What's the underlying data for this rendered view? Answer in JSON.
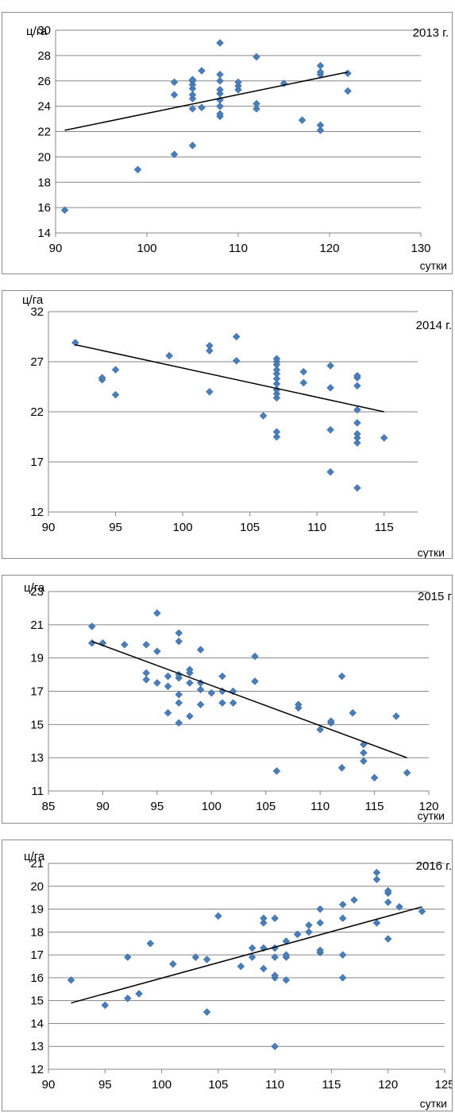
{
  "chart_data": [
    {
      "type": "scatter",
      "title": "2013 г.",
      "ylabel": "ц/га",
      "xlabel": "сутки",
      "xlim": [
        90,
        130
      ],
      "ylim": [
        14,
        30
      ],
      "x_ticks": [
        90,
        100,
        110,
        120,
        130
      ],
      "y_ticks": [
        14,
        16,
        18,
        20,
        22,
        24,
        26,
        28,
        30
      ],
      "grid": "horizontal",
      "trendline": [
        [
          91,
          22.1
        ],
        [
          122,
          26.7
        ]
      ],
      "points": [
        [
          91,
          15.8
        ],
        [
          99,
          19.0
        ],
        [
          103,
          20.2
        ],
        [
          103,
          24.9
        ],
        [
          103,
          25.9
        ],
        [
          105,
          20.9
        ],
        [
          105,
          23.8
        ],
        [
          105,
          24.6
        ],
        [
          105,
          24.9
        ],
        [
          105,
          25.4
        ],
        [
          105,
          25.7
        ],
        [
          105,
          26.0
        ],
        [
          105,
          26.1
        ],
        [
          106,
          23.9
        ],
        [
          106,
          26.8
        ],
        [
          108,
          23.2
        ],
        [
          108,
          23.4
        ],
        [
          108,
          24.0
        ],
        [
          108,
          24.5
        ],
        [
          108,
          25.0
        ],
        [
          108,
          25.3
        ],
        [
          108,
          26.0
        ],
        [
          108,
          26.5
        ],
        [
          108,
          29.0
        ],
        [
          110,
          25.3
        ],
        [
          110,
          25.6
        ],
        [
          110,
          25.9
        ],
        [
          112,
          23.8
        ],
        [
          112,
          24.2
        ],
        [
          112,
          27.9
        ],
        [
          115,
          25.8
        ],
        [
          117,
          22.9
        ],
        [
          119,
          22.1
        ],
        [
          119,
          22.5
        ],
        [
          119,
          26.5
        ],
        [
          119,
          26.7
        ],
        [
          119,
          27.2
        ],
        [
          122,
          25.2
        ],
        [
          122,
          26.6
        ]
      ]
    },
    {
      "type": "scatter",
      "title": "2014 г.",
      "ylabel": "ц/га",
      "xlabel": "сутки",
      "xlim": [
        90,
        117.5
      ],
      "ylim": [
        12,
        32
      ],
      "x_ticks": [
        90,
        95,
        100,
        105,
        110,
        115
      ],
      "y_ticks": [
        12,
        17,
        22,
        27,
        32
      ],
      "grid": "horizontal",
      "trendline": [
        [
          92,
          28.7
        ],
        [
          115,
          22.0
        ]
      ],
      "points": [
        [
          92,
          28.9
        ],
        [
          94,
          25.2
        ],
        [
          94,
          25.4
        ],
        [
          95,
          23.7
        ],
        [
          95,
          26.2
        ],
        [
          99,
          27.6
        ],
        [
          102,
          24.0
        ],
        [
          102,
          28.1
        ],
        [
          102,
          28.6
        ],
        [
          104,
          27.1
        ],
        [
          104,
          29.5
        ],
        [
          106,
          21.6
        ],
        [
          107,
          19.5
        ],
        [
          107,
          20.0
        ],
        [
          107,
          23.4
        ],
        [
          107,
          23.8
        ],
        [
          107,
          24.2
        ],
        [
          107,
          24.8
        ],
        [
          107,
          25.3
        ],
        [
          107,
          25.8
        ],
        [
          107,
          26.2
        ],
        [
          107,
          26.7
        ],
        [
          107,
          27.0
        ],
        [
          107,
          27.3
        ],
        [
          109,
          24.9
        ],
        [
          109,
          26.0
        ],
        [
          111,
          16.0
        ],
        [
          111,
          20.2
        ],
        [
          111,
          24.4
        ],
        [
          111,
          26.6
        ],
        [
          113,
          14.4
        ],
        [
          113,
          18.9
        ],
        [
          113,
          19.4
        ],
        [
          113,
          19.8
        ],
        [
          113,
          20.9
        ],
        [
          113,
          22.2
        ],
        [
          113,
          24.6
        ],
        [
          113,
          25.4
        ],
        [
          113,
          25.6
        ],
        [
          115,
          19.4
        ]
      ]
    },
    {
      "type": "scatter",
      "title": "2015 г",
      "ylabel": "ц/га",
      "xlabel": "сутки",
      "xlim": [
        85,
        120
      ],
      "ylim": [
        11,
        23
      ],
      "x_ticks": [
        85,
        90,
        95,
        100,
        105,
        110,
        115,
        120
      ],
      "y_ticks": [
        11,
        13,
        15,
        17,
        19,
        21,
        23
      ],
      "grid": "horizontal",
      "trendline": [
        [
          89,
          20.0
        ],
        [
          118,
          13.0
        ]
      ],
      "points": [
        [
          89,
          19.9
        ],
        [
          89,
          20.9
        ],
        [
          90,
          19.9
        ],
        [
          92,
          19.8
        ],
        [
          94,
          17.7
        ],
        [
          94,
          18.1
        ],
        [
          94,
          19.8
        ],
        [
          95,
          17.5
        ],
        [
          95,
          19.4
        ],
        [
          95,
          21.7
        ],
        [
          96,
          15.7
        ],
        [
          96,
          17.3
        ],
        [
          96,
          17.9
        ],
        [
          97,
          15.1
        ],
        [
          97,
          16.3
        ],
        [
          97,
          16.8
        ],
        [
          97,
          17.8
        ],
        [
          97,
          18.0
        ],
        [
          97,
          20.0
        ],
        [
          97,
          20.5
        ],
        [
          98,
          15.5
        ],
        [
          98,
          17.5
        ],
        [
          98,
          18.1
        ],
        [
          98,
          18.3
        ],
        [
          99,
          16.2
        ],
        [
          99,
          17.1
        ],
        [
          99,
          17.5
        ],
        [
          99,
          19.5
        ],
        [
          100,
          16.9
        ],
        [
          101,
          16.3
        ],
        [
          101,
          17.0
        ],
        [
          101,
          17.9
        ],
        [
          102,
          16.3
        ],
        [
          102,
          17.0
        ],
        [
          104,
          17.6
        ],
        [
          104,
          19.1
        ],
        [
          106,
          12.2
        ],
        [
          108,
          16.0
        ],
        [
          108,
          16.2
        ],
        [
          110,
          14.7
        ],
        [
          111,
          15.1
        ],
        [
          111,
          15.2
        ],
        [
          112,
          12.4
        ],
        [
          112,
          17.9
        ],
        [
          113,
          15.7
        ],
        [
          114,
          12.8
        ],
        [
          114,
          13.3
        ],
        [
          114,
          13.8
        ],
        [
          115,
          11.8
        ],
        [
          117,
          15.5
        ],
        [
          118,
          12.1
        ]
      ]
    },
    {
      "type": "scatter",
      "title": "2016 г.",
      "ylabel": "ц/га",
      "xlabel": "сутки",
      "xlim": [
        90,
        125
      ],
      "ylim": [
        12,
        21
      ],
      "x_ticks": [
        90,
        95,
        100,
        105,
        110,
        115,
        120,
        125
      ],
      "y_ticks": [
        12,
        13,
        14,
        15,
        16,
        17,
        18,
        19,
        20,
        21
      ],
      "grid": "horizontal",
      "trendline": [
        [
          92,
          14.9
        ],
        [
          123,
          19.1
        ]
      ],
      "points": [
        [
          92,
          15.9
        ],
        [
          95,
          14.8
        ],
        [
          97,
          15.1
        ],
        [
          97,
          16.9
        ],
        [
          98,
          15.3
        ],
        [
          99,
          17.5
        ],
        [
          101,
          16.6
        ],
        [
          103,
          16.9
        ],
        [
          104,
          14.5
        ],
        [
          104,
          16.8
        ],
        [
          105,
          18.7
        ],
        [
          107,
          16.5
        ],
        [
          108,
          16.9
        ],
        [
          108,
          17.3
        ],
        [
          109,
          16.4
        ],
        [
          109,
          17.3
        ],
        [
          109,
          18.4
        ],
        [
          109,
          18.6
        ],
        [
          110,
          13.0
        ],
        [
          110,
          16.0
        ],
        [
          110,
          16.1
        ],
        [
          110,
          16.9
        ],
        [
          110,
          17.3
        ],
        [
          110,
          18.6
        ],
        [
          111,
          15.9
        ],
        [
          111,
          16.9
        ],
        [
          111,
          17.0
        ],
        [
          111,
          17.6
        ],
        [
          112,
          17.9
        ],
        [
          112,
          17.9
        ],
        [
          113,
          18.0
        ],
        [
          113,
          18.3
        ],
        [
          114,
          17.1
        ],
        [
          114,
          17.2
        ],
        [
          114,
          18.4
        ],
        [
          114,
          19.0
        ],
        [
          116,
          16.0
        ],
        [
          116,
          17.0
        ],
        [
          116,
          18.6
        ],
        [
          116,
          19.2
        ],
        [
          117,
          19.4
        ],
        [
          119,
          18.4
        ],
        [
          119,
          20.3
        ],
        [
          119,
          20.6
        ],
        [
          120,
          17.7
        ],
        [
          120,
          19.3
        ],
        [
          120,
          19.7
        ],
        [
          120,
          19.8
        ],
        [
          121,
          19.1
        ],
        [
          123,
          18.9
        ]
      ]
    }
  ]
}
